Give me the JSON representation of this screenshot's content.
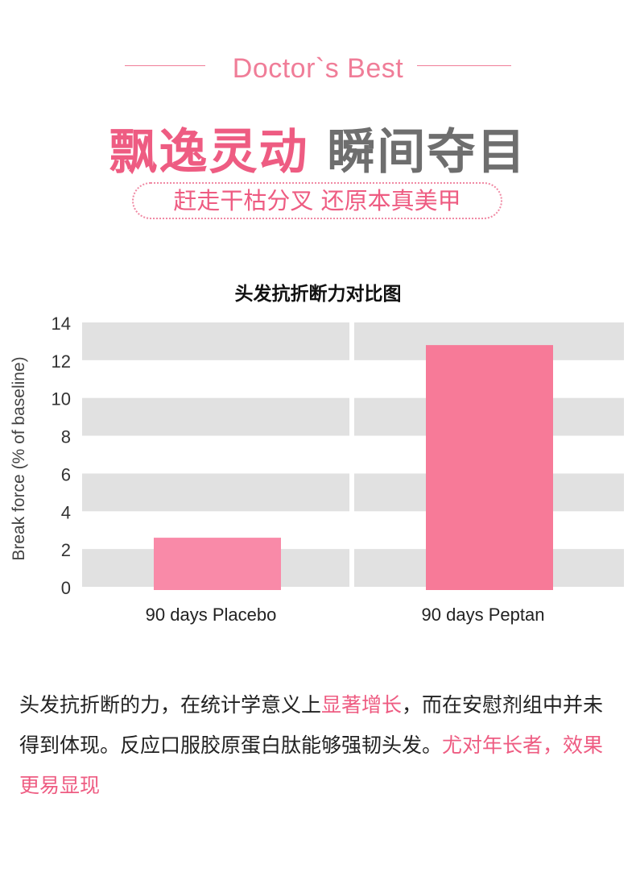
{
  "brand": "Doctor`s Best",
  "headline": {
    "pink": "飘逸灵动",
    "gray": "瞬间夺目"
  },
  "tagline": "赶走干枯分叉 还原本真美甲",
  "caption": {
    "part1": "头发抗折断的力，在统计学意义上",
    "hl1": "显著增长",
    "part2": "，而在安慰剂组中并未得到体现。反应口服胶原蛋白肽能够强韧头发。",
    "hl2": "尤对年长者，效果更易显现"
  },
  "colors": {
    "accent": "#ee5c82",
    "bar_placebo": "#f98aa8",
    "bar_peptan": "#f77a98",
    "grid_band": "#e1e1e1"
  },
  "chart_data": {
    "type": "bar",
    "title": "头发抗折断力对比图",
    "categories": [
      "90 days Placebo",
      "90 days Peptan"
    ],
    "values": [
      2.6,
      12.8
    ],
    "xlabel": "",
    "ylabel": "Break force (% of baseline)",
    "ylim": [
      0,
      14
    ],
    "yticks": [
      0,
      2,
      4,
      6,
      8,
      10,
      12,
      14
    ],
    "grid": true,
    "legend": "none"
  }
}
